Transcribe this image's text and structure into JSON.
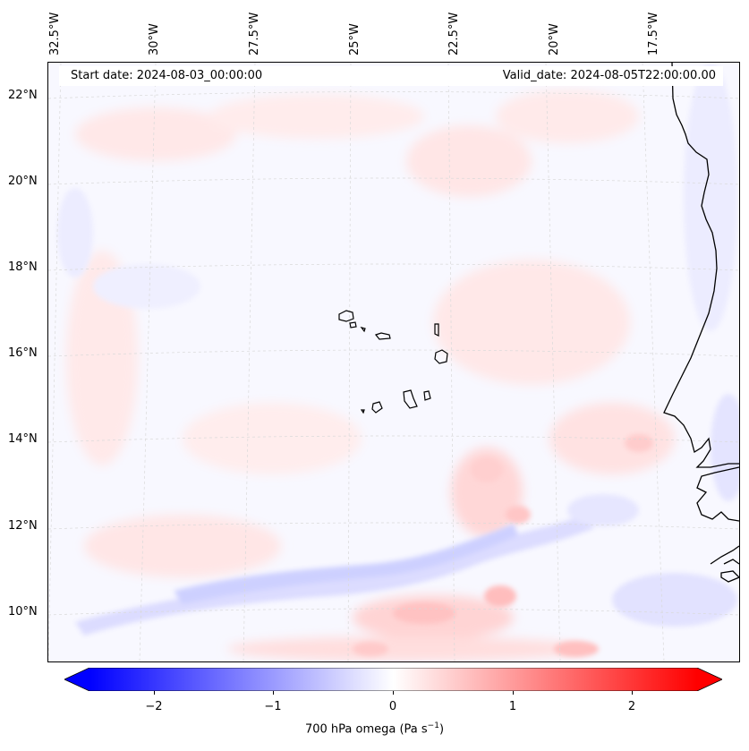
{
  "map": {
    "start_date": "Start date: 2024-08-03_00:00:00",
    "valid_date": "Valid_date: 2024-08-05T22:00:00.00",
    "lon_labels": [
      "32.5°W",
      "30°W",
      "27.5°W",
      "25°W",
      "22.5°W",
      "20°W",
      "17.5°W"
    ],
    "lat_labels": [
      "22°N",
      "20°N",
      "18°N",
      "16°N",
      "14°N",
      "12°N",
      "10°N"
    ],
    "coastline_color": "#000000",
    "grid_color": "#cccccc"
  },
  "colorbar": {
    "label": "700 hPa omega (Pa s",
    "label_exp": "−1",
    "label_end": ")",
    "ticks": [
      "−2",
      "−1",
      "0",
      "1",
      "2"
    ],
    "min": -2.7,
    "max": 2.7,
    "low_color": "#0000ff",
    "high_color": "#ff0000"
  }
}
